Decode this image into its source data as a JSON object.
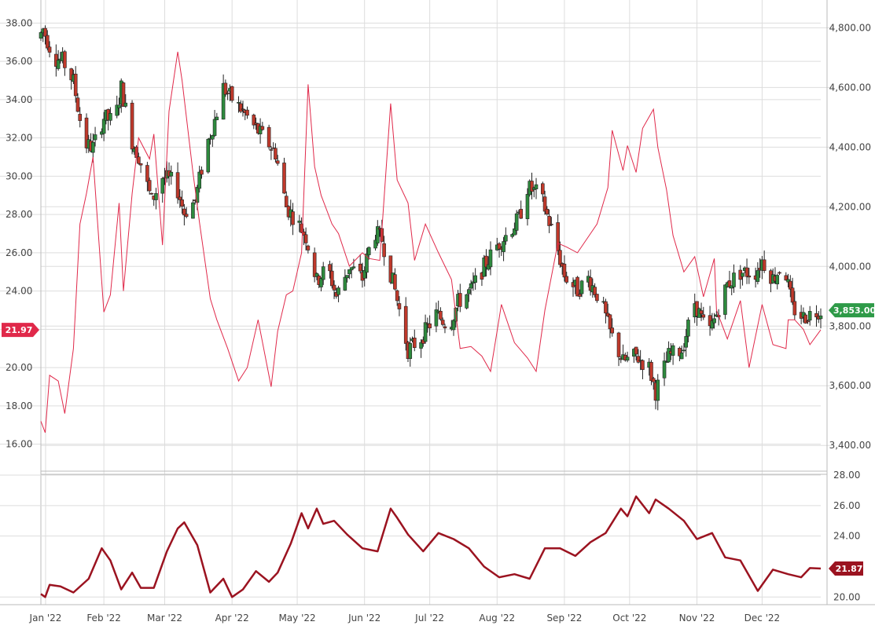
{
  "chart_data": [
    {
      "type": "line",
      "panel": "main",
      "left_axis": {
        "ticks": [
          "16.00",
          "18.00",
          "20.00",
          "22.00",
          "24.00",
          "26.00",
          "28.00",
          "30.00",
          "32.00",
          "34.00",
          "36.00",
          "38.00"
        ],
        "range": [
          15,
          39
        ]
      },
      "right_axis": {
        "ticks": [
          "3,400.00",
          "3,600.00",
          "3,800.00",
          "4,000.00",
          "4,200.00",
          "4,400.00",
          "4,600.00",
          "4,800.00"
        ],
        "range": [
          3340,
          4880
        ]
      },
      "x_ticks": [
        "Jan '22",
        "Feb '22",
        "Mar '22",
        "Apr '22",
        "May '22",
        "Jun '22",
        "Jul '22",
        "Aug '22",
        "Sep '22",
        "Oct '22",
        "Nov '22",
        "Dec '22"
      ],
      "grid": true,
      "series": [
        {
          "kind": "line",
          "axis": "left",
          "color": "#e0294a",
          "last_label": "21.97",
          "x": [
            "2022-01-03",
            "2022-01-05",
            "2022-01-07",
            "2022-01-11",
            "2022-01-14",
            "2022-01-18",
            "2022-01-21",
            "2022-01-24",
            "2022-01-27",
            "2022-02-01",
            "2022-02-04",
            "2022-02-08",
            "2022-02-10",
            "2022-02-14",
            "2022-02-17",
            "2022-02-22",
            "2022-02-24",
            "2022-02-28",
            "2022-03-03",
            "2022-03-07",
            "2022-03-09",
            "2022-03-14",
            "2022-03-17",
            "2022-03-22",
            "2022-03-25",
            "2022-03-30",
            "2022-04-04",
            "2022-04-08",
            "2022-04-13",
            "2022-04-19",
            "2022-04-22",
            "2022-04-26",
            "2022-04-29",
            "2022-05-03",
            "2022-05-06",
            "2022-05-09",
            "2022-05-12",
            "2022-05-17",
            "2022-05-20",
            "2022-05-25",
            "2022-05-31",
            "2022-06-03",
            "2022-06-08",
            "2022-06-13",
            "2022-06-16",
            "2022-06-21",
            "2022-06-24",
            "2022-06-29",
            "2022-07-05",
            "2022-07-11",
            "2022-07-15",
            "2022-07-20",
            "2022-07-25",
            "2022-07-29",
            "2022-08-03",
            "2022-08-09",
            "2022-08-15",
            "2022-08-19",
            "2022-08-23",
            "2022-08-29",
            "2022-09-02",
            "2022-09-07",
            "2022-09-13",
            "2022-09-16",
            "2022-09-21",
            "2022-09-23",
            "2022-09-28",
            "2022-09-30",
            "2022-10-04",
            "2022-10-07",
            "2022-10-12",
            "2022-10-14",
            "2022-10-18",
            "2022-10-21",
            "2022-10-26",
            "2022-10-31",
            "2022-11-04",
            "2022-11-09",
            "2022-11-10",
            "2022-11-15",
            "2022-11-21",
            "2022-11-25",
            "2022-12-01",
            "2022-12-06",
            "2022-12-12",
            "2022-12-13",
            "2022-12-16",
            "2022-12-20",
            "2022-12-23",
            "2022-12-28"
          ],
          "y": [
            17.2,
            16.6,
            19.6,
            19.3,
            17.6,
            21.0,
            27.5,
            29.1,
            31.0,
            22.9,
            23.8,
            28.6,
            24.0,
            29.1,
            32.0,
            30.9,
            32.2,
            26.4,
            33.4,
            36.5,
            35.0,
            30.2,
            27.6,
            23.6,
            22.5,
            21.0,
            19.3,
            20.0,
            22.5,
            19.0,
            21.9,
            23.8,
            24.0,
            26.0,
            34.8,
            30.5,
            29.0,
            27.5,
            27.0,
            25.3,
            26.0,
            25.7,
            25.6,
            33.8,
            29.8,
            28.6,
            25.6,
            27.5,
            26.0,
            24.6,
            21.0,
            21.1,
            20.6,
            19.8,
            23.3,
            21.3,
            20.5,
            19.8,
            23.0,
            26.5,
            26.3,
            26.0,
            27.0,
            27.5,
            29.4,
            32.4,
            30.3,
            31.6,
            30.2,
            32.5,
            33.5,
            31.5,
            29.3,
            26.9,
            25.0,
            25.8,
            23.7,
            25.7,
            23.0,
            21.5,
            23.5,
            20.0,
            23.3,
            21.2,
            21.0,
            22.5,
            22.5,
            22.0,
            21.2,
            21.97
          ]
        },
        {
          "kind": "candlestick",
          "axis": "right",
          "up_color": "#2e8b3e",
          "down_color": "#c0392b",
          "last_label": "3,853.00",
          "x": [
            "2022-01-03",
            "2022-01-05",
            "2022-01-10",
            "2022-01-14",
            "2022-01-19",
            "2022-01-24",
            "2022-01-28",
            "2022-02-02",
            "2022-02-07",
            "2022-02-10",
            "2022-02-15",
            "2022-02-18",
            "2022-02-24",
            "2022-03-01",
            "2022-03-07",
            "2022-03-11",
            "2022-03-16",
            "2022-03-21",
            "2022-03-25",
            "2022-03-29",
            "2022-04-01",
            "2022-04-07",
            "2022-04-12",
            "2022-04-18",
            "2022-04-22",
            "2022-04-27",
            "2022-05-02",
            "2022-05-06",
            "2022-05-11",
            "2022-05-16",
            "2022-05-20",
            "2022-05-26",
            "2022-06-01",
            "2022-06-06",
            "2022-06-10",
            "2022-06-16",
            "2022-06-22",
            "2022-06-28",
            "2022-07-05",
            "2022-07-11",
            "2022-07-15",
            "2022-07-21",
            "2022-07-27",
            "2022-08-02",
            "2022-08-08",
            "2022-08-12",
            "2022-08-16",
            "2022-08-22",
            "2022-08-29",
            "2022-09-02",
            "2022-09-08",
            "2022-09-13",
            "2022-09-19",
            "2022-09-23",
            "2022-09-29",
            "2022-10-05",
            "2022-10-11",
            "2022-10-14",
            "2022-10-20",
            "2022-10-26",
            "2022-11-01",
            "2022-11-07",
            "2022-11-10",
            "2022-11-16",
            "2022-11-22",
            "2022-11-29",
            "2022-12-02",
            "2022-12-07",
            "2022-12-12",
            "2022-12-16",
            "2022-12-21",
            "2022-12-28"
          ],
          "open": [
            4765,
            4796,
            4700,
            4690,
            4620,
            4410,
            4400,
            4500,
            4485,
            4600,
            4420,
            4370,
            4220,
            4300,
            4280,
            4180,
            4220,
            4400,
            4490,
            4600,
            4570,
            4520,
            4470,
            4420,
            4380,
            4200,
            4150,
            4100,
            3950,
            4000,
            3900,
            4000,
            3960,
            4120,
            4090,
            3920,
            3720,
            3760,
            3840,
            3800,
            3880,
            3920,
            4000,
            4070,
            4120,
            4160,
            4265,
            4240,
            4080,
            3970,
            3920,
            3960,
            3880,
            3780,
            3680,
            3700,
            3660,
            3580,
            3700,
            3720,
            3880,
            3770,
            3820,
            3940,
            3980,
            3980,
            4020,
            3960,
            4010,
            3860,
            3830,
            3853
          ]
        }
      ]
    },
    {
      "type": "line",
      "panel": "lower",
      "axis_ticks": [
        "20.00",
        "24.00",
        "26.00",
        "28.00"
      ],
      "range": [
        19.5,
        28
      ],
      "series": [
        {
          "color": "#9b1320",
          "last_label": "21.87",
          "x": [
            "2022-01-03",
            "2022-01-05",
            "2022-01-07",
            "2022-01-12",
            "2022-01-18",
            "2022-01-25",
            "2022-01-31",
            "2022-02-04",
            "2022-02-09",
            "2022-02-14",
            "2022-02-18",
            "2022-02-24",
            "2022-03-02",
            "2022-03-07",
            "2022-03-10",
            "2022-03-16",
            "2022-03-22",
            "2022-03-28",
            "2022-04-01",
            "2022-04-06",
            "2022-04-12",
            "2022-04-18",
            "2022-04-22",
            "2022-04-28",
            "2022-05-03",
            "2022-05-06",
            "2022-05-10",
            "2022-05-13",
            "2022-05-18",
            "2022-05-24",
            "2022-05-31",
            "2022-06-07",
            "2022-06-13",
            "2022-06-16",
            "2022-06-21",
            "2022-06-28",
            "2022-07-05",
            "2022-07-12",
            "2022-07-19",
            "2022-07-26",
            "2022-08-02",
            "2022-08-09",
            "2022-08-16",
            "2022-08-23",
            "2022-08-30",
            "2022-09-06",
            "2022-09-13",
            "2022-09-20",
            "2022-09-27",
            "2022-09-30",
            "2022-10-04",
            "2022-10-10",
            "2022-10-13",
            "2022-10-19",
            "2022-10-26",
            "2022-11-01",
            "2022-11-08",
            "2022-11-14",
            "2022-11-21",
            "2022-11-29",
            "2022-12-06",
            "2022-12-13",
            "2022-12-19",
            "2022-12-23",
            "2022-12-28"
          ],
          "y": [
            20.2,
            20.0,
            20.8,
            20.7,
            20.3,
            21.2,
            23.2,
            22.4,
            20.5,
            21.6,
            20.6,
            20.6,
            23.0,
            24.5,
            24.9,
            23.4,
            20.3,
            21.2,
            20.0,
            20.5,
            21.7,
            21.0,
            21.6,
            23.5,
            25.5,
            24.5,
            25.8,
            24.8,
            25.0,
            24.1,
            23.2,
            23.0,
            25.8,
            25.2,
            24.1,
            23.0,
            24.2,
            23.8,
            23.2,
            22.0,
            21.3,
            21.5,
            21.2,
            23.2,
            23.2,
            22.7,
            23.6,
            24.2,
            25.8,
            25.3,
            26.6,
            25.5,
            26.4,
            25.8,
            25.0,
            23.8,
            24.2,
            22.6,
            22.4,
            20.4,
            21.8,
            21.5,
            21.3,
            21.9,
            21.87
          ]
        }
      ]
    }
  ]
}
